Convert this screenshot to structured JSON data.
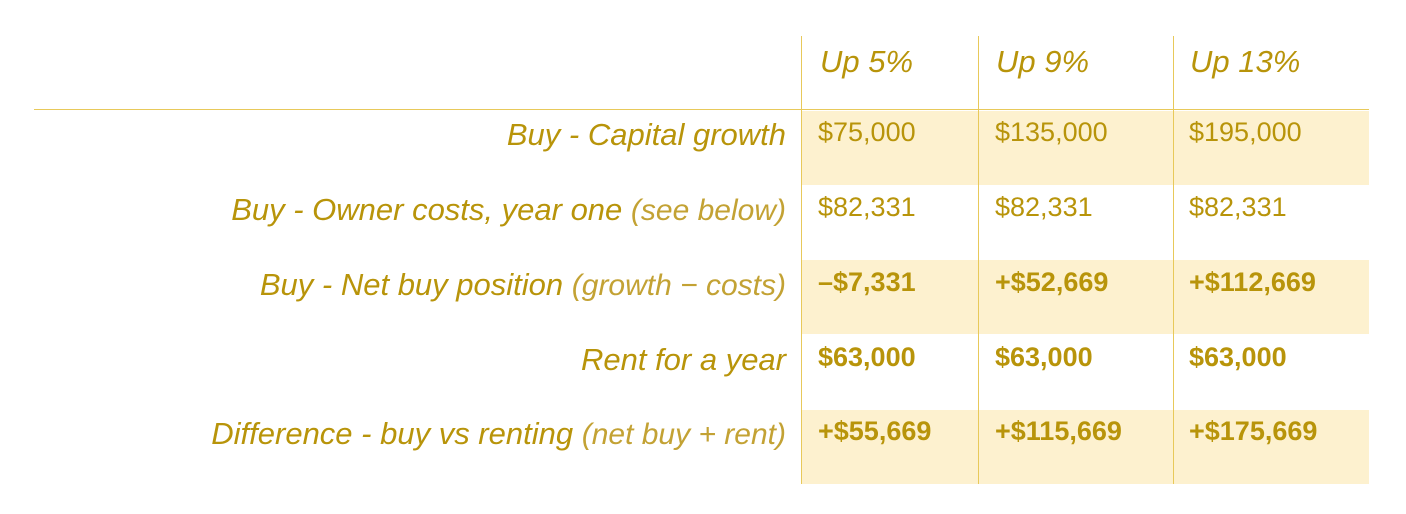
{
  "table": {
    "columns": [
      "Up 5%",
      "Up 9%",
      "Up 13%"
    ],
    "rows": [
      {
        "label": "Buy - Capital growth",
        "note": "",
        "bold": false,
        "values": [
          "$75,000",
          "$135,000",
          "$195,000"
        ]
      },
      {
        "label": "Buy - Owner costs, year one",
        "note": "(see below)",
        "bold": false,
        "values": [
          "$82,331",
          "$82,331",
          "$82,331"
        ]
      },
      {
        "label": "Buy - Net buy position",
        "note": "(growth − costs)",
        "bold": true,
        "values": [
          "–$7,331",
          "+$52,669",
          "+$112,669"
        ]
      },
      {
        "label": "Rent for a year",
        "note": "",
        "bold": true,
        "values": [
          "$63,000",
          "$63,000",
          "$63,000"
        ]
      },
      {
        "label": "Difference - buy vs renting",
        "note": "(net buy + rent)",
        "bold": true,
        "values": [
          "+$55,669",
          "+$115,669",
          "+$175,669"
        ]
      }
    ]
  },
  "colors": {
    "text": "#b8940a",
    "band": "#fdf1cf",
    "rule": "#e8c95a"
  }
}
